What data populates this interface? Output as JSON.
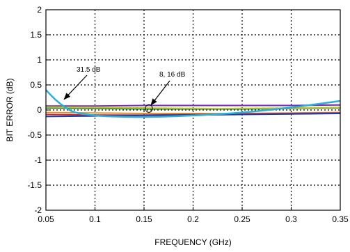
{
  "chart_data": {
    "type": "line",
    "xlabel": "FREQUENCY (GHz)",
    "ylabel": "BIT ERROR (dB)",
    "xlim": [
      0.05,
      0.35
    ],
    "ylim": [
      -2,
      2
    ],
    "xticks": [
      0.05,
      0.1,
      0.15,
      0.2,
      0.25,
      0.3,
      0.35
    ],
    "xtick_labels": [
      "0.05",
      "0.1",
      "0.15",
      "0.2",
      "0.25",
      "0.3",
      "0.35"
    ],
    "yticks": [
      2,
      1.5,
      1,
      0.5,
      0,
      -0.5,
      -1,
      -1.5,
      -2
    ],
    "ytick_labels": [
      "2",
      "1.5",
      "1",
      "0.5",
      "0",
      "-0.5",
      "-1",
      "-1.5",
      "-2"
    ],
    "grid": true,
    "series": [
      {
        "color": "#28b0d8",
        "x": [
          0.05,
          0.06,
          0.07,
          0.08,
          0.1,
          0.12,
          0.15,
          0.2,
          0.25,
          0.3,
          0.32,
          0.35
        ],
        "y": [
          0.4,
          0.2,
          0.05,
          -0.05,
          -0.11,
          -0.13,
          -0.14,
          -0.11,
          -0.05,
          0.05,
          0.1,
          0.18
        ]
      },
      {
        "color": "#7a2bbf",
        "x": [
          0.05,
          0.1,
          0.15,
          0.2,
          0.25,
          0.3,
          0.35
        ],
        "y": [
          0.08,
          0.08,
          0.09,
          0.09,
          0.09,
          0.09,
          0.1
        ]
      },
      {
        "color": "#2a8a2a",
        "x": [
          0.05,
          0.1,
          0.15,
          0.2,
          0.25,
          0.3,
          0.35
        ],
        "y": [
          0.04,
          0.03,
          0.02,
          0.02,
          0.02,
          0.03,
          0.04
        ]
      },
      {
        "color": "#c0c030",
        "x": [
          0.05,
          0.1,
          0.15,
          0.2,
          0.25,
          0.3,
          0.35
        ],
        "y": [
          0.06,
          0.05,
          0.04,
          0.03,
          0.03,
          0.04,
          0.05
        ]
      },
      {
        "color": "#e0902a",
        "x": [
          0.05,
          0.1,
          0.15,
          0.2,
          0.25,
          0.3,
          0.35
        ],
        "y": [
          -0.05,
          -0.06,
          -0.07,
          -0.07,
          -0.07,
          -0.06,
          -0.05
        ]
      },
      {
        "color": "#d02a2a",
        "x": [
          0.05,
          0.1,
          0.15,
          0.2,
          0.25,
          0.3,
          0.35
        ],
        "y": [
          -0.09,
          -0.1,
          -0.1,
          -0.09,
          -0.08,
          -0.07,
          -0.06
        ]
      },
      {
        "color": "#1f3aa8",
        "x": [
          0.05,
          0.1,
          0.15,
          0.2,
          0.25,
          0.3,
          0.35
        ],
        "y": [
          -0.13,
          -0.12,
          -0.11,
          -0.1,
          -0.09,
          -0.08,
          -0.07
        ]
      }
    ],
    "annotations": [
      {
        "text": "31.5 dB",
        "target_x": 0.065,
        "target_y": 0.2
      },
      {
        "text": "8, 16 dB",
        "target_x": 0.155,
        "target_y": 0.03
      }
    ]
  }
}
